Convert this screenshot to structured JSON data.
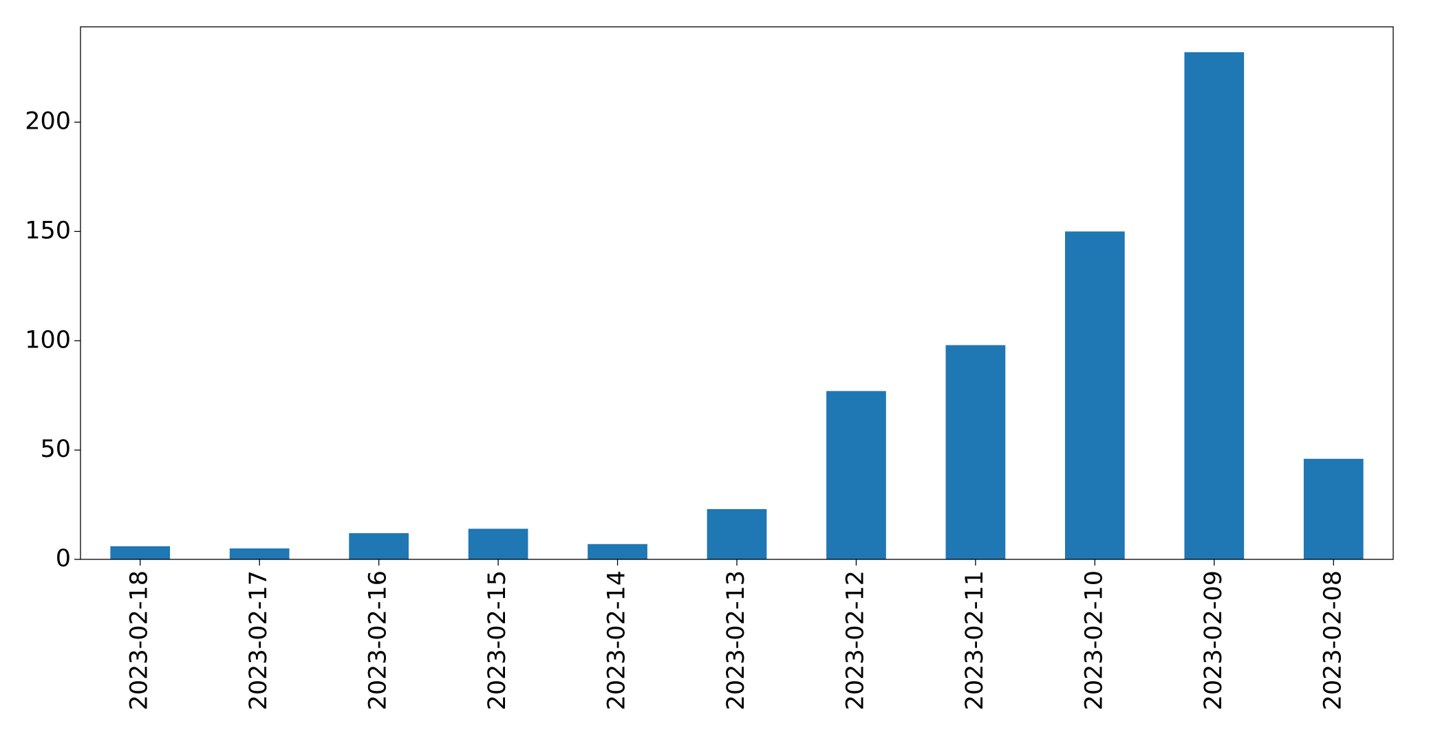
{
  "chart_data": {
    "type": "bar",
    "categories": [
      "2023-02-18",
      "2023-02-17",
      "2023-02-16",
      "2023-02-15",
      "2023-02-14",
      "2023-02-13",
      "2023-02-12",
      "2023-02-11",
      "2023-02-10",
      "2023-02-09",
      "2023-02-08"
    ],
    "values": [
      6,
      5,
      12,
      14,
      7,
      23,
      77,
      98,
      150,
      232,
      46
    ],
    "color": "#1f77b4",
    "ylim": [
      0,
      243.6
    ],
    "yticks": [
      0,
      50,
      100,
      150,
      200
    ],
    "grid": false
  }
}
